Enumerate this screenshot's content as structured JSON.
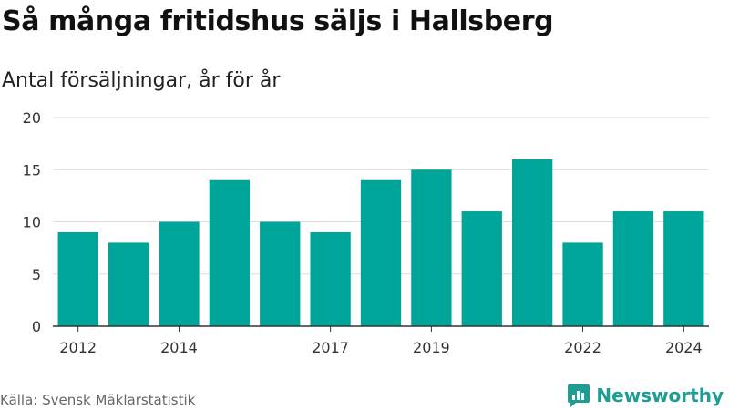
{
  "header": {
    "title": "Så många fritidshus säljs i Hallsberg",
    "subtitle": "Antal försäljningar, år för år"
  },
  "footer": {
    "source": "Källa: Svensk Mäklarstatistik",
    "brand": "Newsworthy",
    "brand_icon": "bar-chart-bubble-icon",
    "brand_color": "#1f9c93"
  },
  "chart_data": {
    "type": "bar",
    "categories": [
      "2012",
      "2013",
      "2014",
      "2015",
      "2016",
      "2017",
      "2018",
      "2019",
      "2020",
      "2021",
      "2022",
      "2023",
      "2024"
    ],
    "values": [
      9,
      8,
      10,
      14,
      10,
      9,
      14,
      15,
      11,
      16,
      8,
      11,
      11
    ],
    "x_tick_labels": [
      "2012",
      "",
      "2014",
      "",
      "",
      "2017",
      "",
      "2019",
      "",
      "",
      "2022",
      "",
      "2024"
    ],
    "y_ticks": [
      0,
      5,
      10,
      15,
      20
    ],
    "ylim": [
      0,
      20
    ],
    "bar_color": "#00a59a",
    "grid": true,
    "legend": "none"
  }
}
